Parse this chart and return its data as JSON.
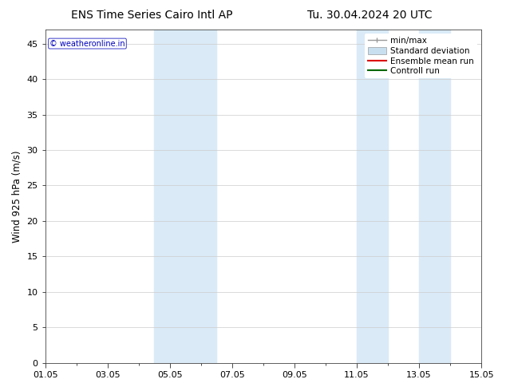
{
  "title_left": "ENS Time Series Cairo Intl AP",
  "title_right": "Tu. 30.04.2024 20 UTC",
  "ylabel": "Wind 925 hPa (m/s)",
  "xlabel": "",
  "ylim": [
    0,
    47
  ],
  "yticks": [
    0,
    5,
    10,
    15,
    20,
    25,
    30,
    35,
    40,
    45
  ],
  "xtick_labels": [
    "01.05",
    "03.05",
    "05.05",
    "07.05",
    "09.05",
    "11.05",
    "13.05",
    "15.05"
  ],
  "xtick_positions": [
    0,
    2,
    4,
    6,
    8,
    10,
    12,
    14
  ],
  "x_total": 14,
  "shaded_regions": [
    {
      "x_start": 3.5,
      "x_end": 5.5,
      "color": "#daeaf7"
    },
    {
      "x_start": 10.0,
      "x_end": 11.0,
      "color": "#daeaf7"
    },
    {
      "x_start": 12.0,
      "x_end": 13.0,
      "color": "#daeaf7"
    }
  ],
  "legend_items": [
    {
      "label": "min/max",
      "color": "#999999",
      "type": "errorbar"
    },
    {
      "label": "Standard deviation",
      "color": "#c8dff0",
      "type": "fill"
    },
    {
      "label": "Ensemble mean run",
      "color": "#dd0000",
      "type": "line"
    },
    {
      "label": "Controll run",
      "color": "#006600",
      "type": "line"
    }
  ],
  "watermark_text": "© weatheronline.in",
  "watermark_color": "#0000bb",
  "bg_color": "#ffffff",
  "plot_bg_color": "#ffffff",
  "grid_color": "#cccccc",
  "title_fontsize": 10,
  "axis_fontsize": 8.5,
  "tick_fontsize": 8,
  "legend_fontsize": 7.5
}
